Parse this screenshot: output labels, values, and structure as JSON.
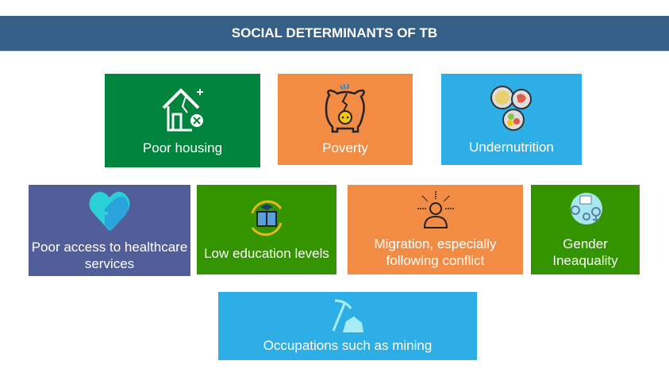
{
  "header": {
    "title": "SOCIAL DETERMINANTS OF TB"
  },
  "tiles": [
    {
      "label": "Poor housing",
      "icon": "damaged-house-icon",
      "color": "#00843d"
    },
    {
      "label": "Poverty",
      "icon": "broken-piggy-bank-icon",
      "color": "#f28c45"
    },
    {
      "label": "Undernutrition",
      "icon": "food-plates-icon",
      "color": "#2eaee6"
    },
    {
      "label": "Poor access to healthcare services",
      "icon": "heart-house-icon",
      "color": "#515e9a"
    },
    {
      "label": "Low education levels",
      "icon": "book-cycle-icon",
      "color": "#339400"
    },
    {
      "label": "Migration, especially following conflict",
      "icon": "person-pressure-icon",
      "color": "#f28c45"
    },
    {
      "label": "Gender Ineaquality",
      "icon": "gender-symbols-icon",
      "color": "#339400"
    },
    {
      "label": "Occupations such as mining",
      "icon": "pickaxe-rock-icon",
      "color": "#2eaee6"
    }
  ]
}
